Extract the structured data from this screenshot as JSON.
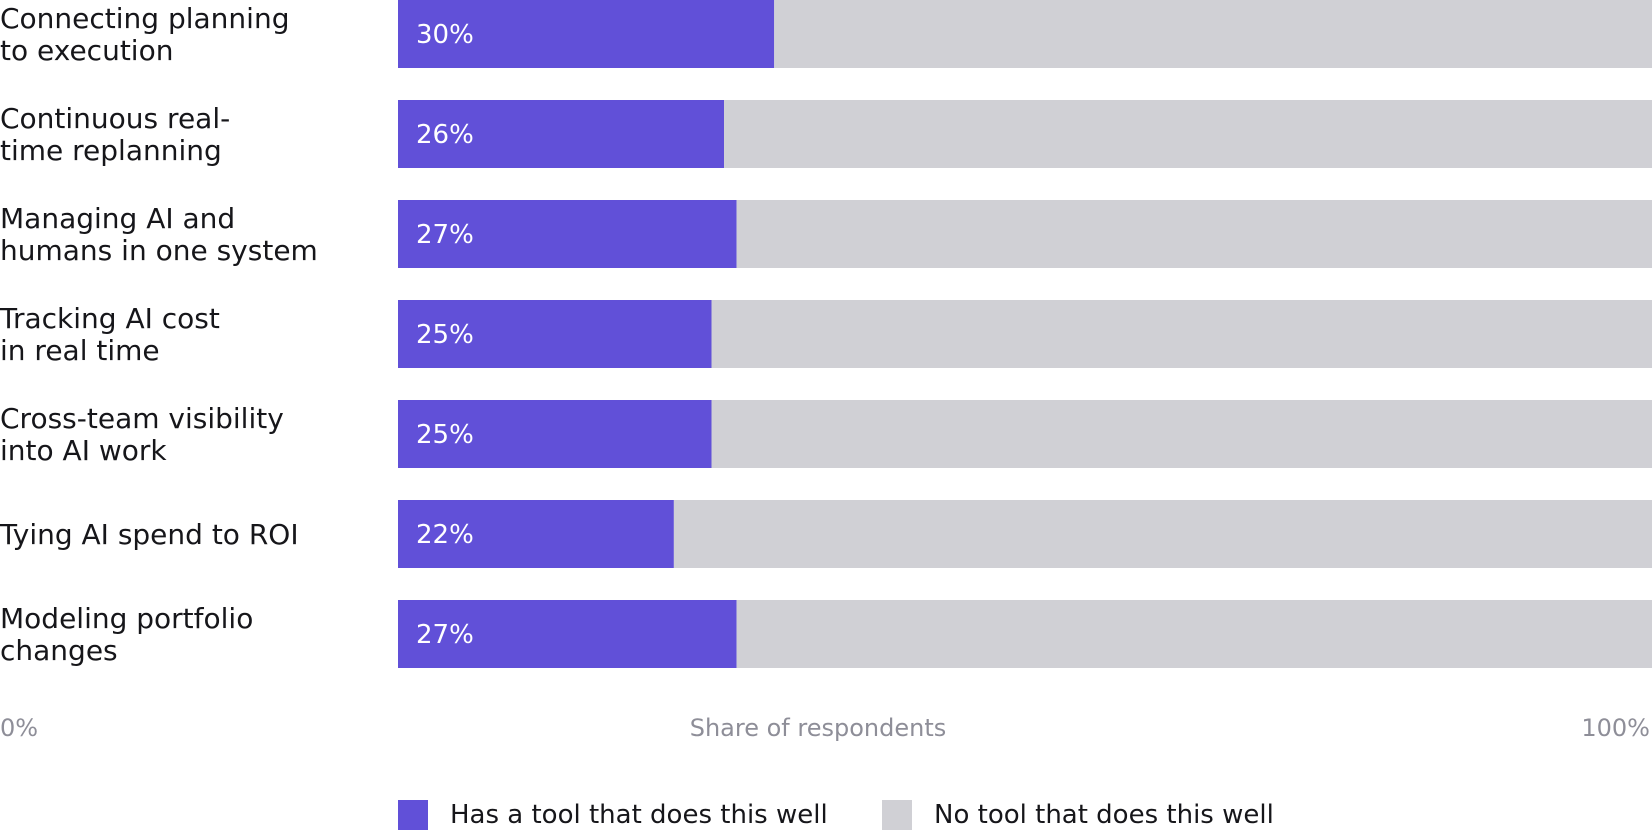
{
  "chart_data": {
    "type": "bar",
    "orientation": "horizontal",
    "stacked": true,
    "categories": [
      [
        "Connecting planning",
        "to execution"
      ],
      [
        "Continuous real-",
        "time replanning"
      ],
      [
        "Managing AI and",
        "humans in one system"
      ],
      [
        "Tracking AI cost",
        "in real time"
      ],
      [
        "Cross-team visibility",
        "into AI work"
      ],
      [
        "Tying AI spend to ROI"
      ],
      [
        "Modeling portfolio",
        "changes"
      ]
    ],
    "series": [
      {
        "name": "Has a tool that does this well",
        "values": [
          30,
          26,
          27,
          25,
          25,
          22,
          27
        ],
        "labels": [
          "30%",
          "26%",
          "27%",
          "25%",
          "25%",
          "22%",
          "27%"
        ],
        "color": "#6150d8"
      },
      {
        "name": "No tool that does this well",
        "values": [
          70,
          74,
          73,
          75,
          75,
          78,
          73
        ],
        "color": "#d0d0d5"
      }
    ],
    "xlabel": "Share of respondents",
    "xlim": [
      0,
      100
    ],
    "x_tick_labels": {
      "min": "0%",
      "max": "100%"
    },
    "grid": false,
    "legend_position": "bottom"
  }
}
